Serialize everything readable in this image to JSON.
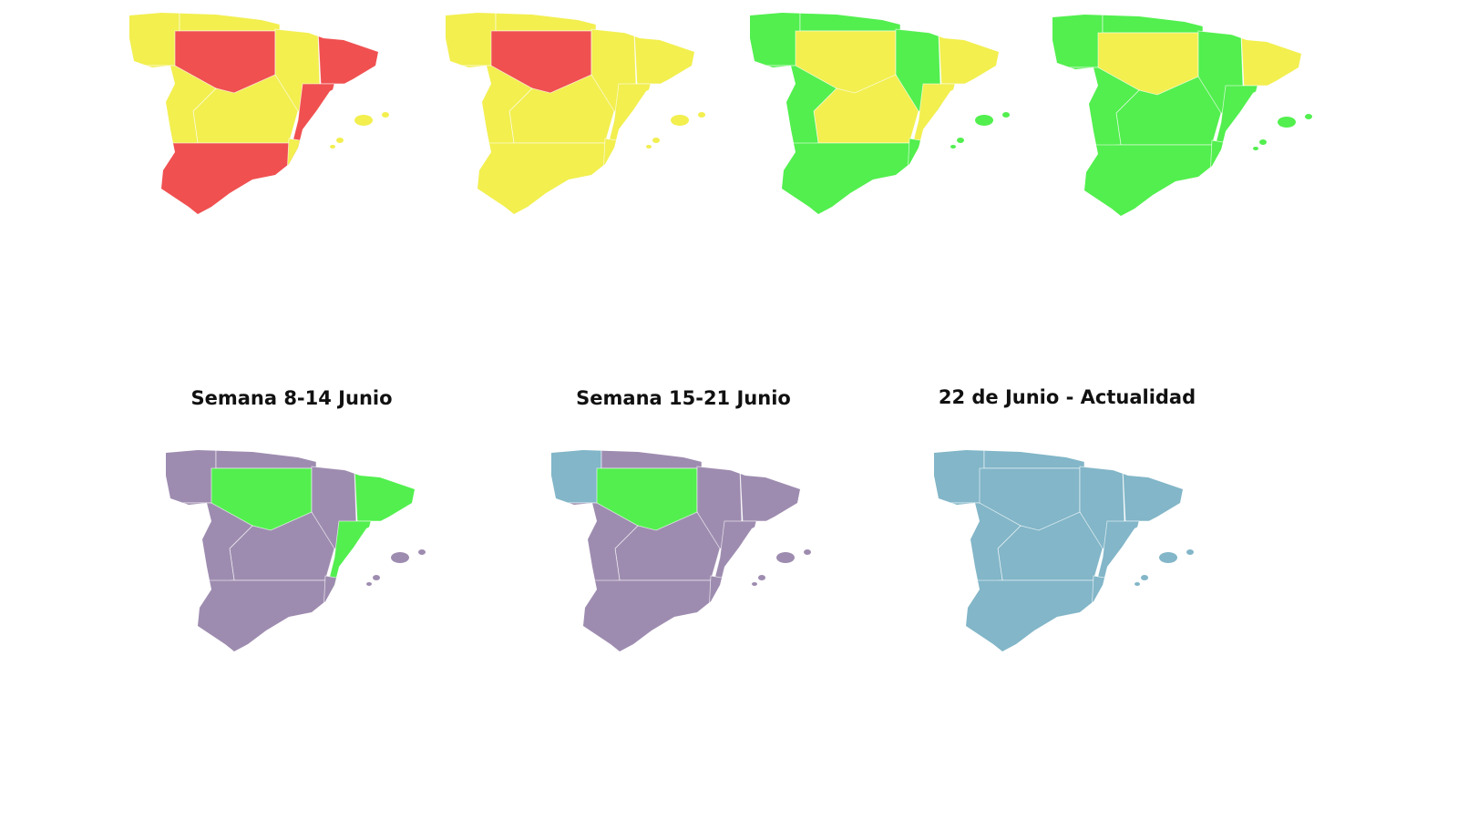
{
  "maps": [
    {
      "title": "Semana 8-14 Junio"
    },
    {
      "title": "Semana 15-21 Junio"
    },
    {
      "title": "22 de Junio - Actualidad"
    }
  ]
}
